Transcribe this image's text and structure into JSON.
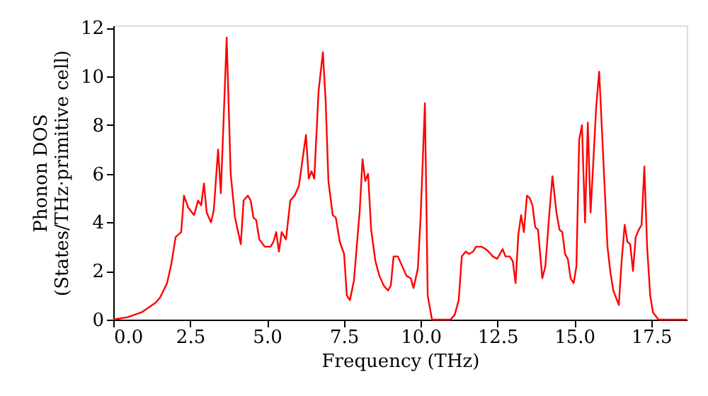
{
  "chart_data": {
    "type": "line",
    "xlabel": "Frequency (THz)",
    "ylabel": "Phonon DOS\n(States/THz·primitive cell)",
    "xlim": [
      0,
      18.66
    ],
    "ylim": [
      0,
      12.1
    ],
    "xticks": [
      {
        "value": 0,
        "label": "0.0"
      },
      2.5,
      {
        "value": 5,
        "label": "5.0"
      },
      7.5,
      {
        "value": 10,
        "label": "10.0"
      },
      12.5,
      {
        "value": 15,
        "label": "15.0"
      },
      17.5
    ],
    "yticks": [
      0,
      2,
      4,
      6,
      8,
      10,
      12
    ],
    "grid": false,
    "marker": "none",
    "line_style": "solid",
    "series": [
      {
        "color": "#ff0000",
        "x": [
          0,
          0.46,
          0.92,
          1.38,
          1.52,
          1.75,
          1.89,
          2.03,
          2.21,
          2.3,
          2.44,
          2.63,
          2.76,
          2.86,
          2.95,
          3.04,
          3.18,
          3.27,
          3.41,
          3.5,
          3.69,
          3.82,
          3.96,
          4.15,
          4.24,
          4.38,
          4.47,
          4.56,
          4.65,
          4.75,
          4.93,
          5.12,
          5.21,
          5.3,
          5.39,
          5.48,
          5.62,
          5.76,
          5.9,
          6.04,
          6.27,
          6.36,
          6.45,
          6.54,
          6.68,
          6.82,
          6.91,
          7.0,
          7.14,
          7.24,
          7.37,
          7.51,
          7.6,
          7.7,
          7.83,
          8.02,
          8.11,
          8.2,
          8.29,
          8.39,
          8.53,
          8.66,
          8.8,
          8.94,
          9.03,
          9.12,
          9.26,
          9.4,
          9.54,
          9.68,
          9.77,
          9.91,
          10.0,
          10.14,
          10.23,
          10.37,
          10.97,
          11.11,
          11.24,
          11.34,
          11.47,
          11.57,
          11.71,
          11.8,
          11.98,
          12.12,
          12.21,
          12.35,
          12.49,
          12.58,
          12.67,
          12.76,
          12.9,
          13.0,
          13.09,
          13.18,
          13.27,
          13.36,
          13.46,
          13.55,
          13.64,
          13.73,
          13.82,
          13.96,
          14.06,
          14.19,
          14.29,
          14.42,
          14.52,
          14.61,
          14.7,
          14.79,
          14.88,
          14.98,
          15.07,
          15.16,
          15.25,
          15.35,
          15.44,
          15.53,
          15.62,
          15.71,
          15.81,
          15.9,
          16.08,
          16.18,
          16.27,
          16.36,
          16.45,
          16.54,
          16.64,
          16.73,
          16.82,
          16.91,
          17.0,
          17.1,
          17.19,
          17.28,
          17.37,
          17.47,
          17.56,
          17.74,
          18.66
        ],
        "values": [
          0,
          0.1,
          0.3,
          0.7,
          0.9,
          1.5,
          2.3,
          3.4,
          3.6,
          5.1,
          4.6,
          4.3,
          4.9,
          4.7,
          5.6,
          4.4,
          4.0,
          4.5,
          7.0,
          5.2,
          11.6,
          6.0,
          4.2,
          3.1,
          4.9,
          5.1,
          4.9,
          4.2,
          4.1,
          3.3,
          3.0,
          3.0,
          3.2,
          3.6,
          2.8,
          3.6,
          3.3,
          4.9,
          5.1,
          5.5,
          7.6,
          5.8,
          6.1,
          5.8,
          9.4,
          11.0,
          9.0,
          5.7,
          4.3,
          4.2,
          3.2,
          2.7,
          1.0,
          0.8,
          1.6,
          4.5,
          6.6,
          5.7,
          6.0,
          3.7,
          2.4,
          1.8,
          1.4,
          1.2,
          1.4,
          2.6,
          2.6,
          2.2,
          1.8,
          1.7,
          1.3,
          2.1,
          4.2,
          8.9,
          1.0,
          0,
          0,
          0.2,
          0.8,
          2.6,
          2.8,
          2.7,
          2.8,
          3.0,
          3.0,
          2.9,
          2.8,
          2.6,
          2.5,
          2.7,
          2.9,
          2.6,
          2.6,
          2.4,
          1.5,
          3.5,
          4.3,
          3.6,
          5.1,
          5.0,
          4.7,
          3.8,
          3.7,
          1.7,
          2.2,
          4.4,
          5.9,
          4.4,
          3.7,
          3.6,
          2.7,
          2.5,
          1.7,
          1.5,
          2.2,
          7.4,
          8.0,
          4.0,
          8.1,
          4.4,
          6.5,
          8.7,
          10.2,
          7.8,
          3.0,
          1.9,
          1.2,
          0.9,
          0.6,
          2.4,
          3.9,
          3.2,
          3.1,
          2.0,
          3.4,
          3.7,
          3.9,
          6.3,
          3.0,
          1.0,
          0.3,
          0,
          0
        ]
      }
    ]
  }
}
